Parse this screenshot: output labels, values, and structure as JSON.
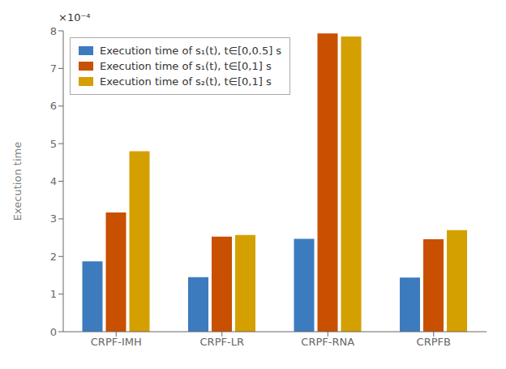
{
  "chart_data": {
    "type": "bar",
    "categories": [
      "CRPF-IMH",
      "CRPF-LR",
      "CRPF-RNA",
      "CRPFB"
    ],
    "series": [
      {
        "name": "Execution time of s₁(t), t∈[0,0.5] s",
        "color": "#3d7bbf",
        "values": [
          0.000187,
          0.000145,
          0.000247,
          0.000144
        ]
      },
      {
        "name": "Execution time of s₁(t), t∈[0,1] s",
        "color": "#c85000",
        "values": [
          0.000317,
          0.000253,
          0.000793,
          0.000246
        ]
      },
      {
        "name": "Execution time of s₂(t), t∈[0,1] s",
        "color": "#d4a000",
        "values": [
          0.00048,
          0.000257,
          0.000785,
          0.00027
        ]
      }
    ],
    "ylabel": "Execution time",
    "annotations": [
      "×10⁻⁴"
    ],
    "ylim": [
      0,
      0.0008
    ],
    "yticks": [
      0,
      {
        "value": 0.0001,
        "label": "1"
      },
      {
        "value": 0.0002,
        "label": "2"
      },
      {
        "value": 0.0003,
        "label": "3"
      },
      {
        "value": 0.0004,
        "label": "4"
      },
      {
        "value": 0.0005,
        "label": "5"
      },
      {
        "value": 0.0006,
        "label": "6"
      },
      {
        "value": 0.0007,
        "label": "7"
      },
      {
        "value": 0.0008,
        "label": "8"
      }
    ],
    "grid": false,
    "legend": "upper left"
  }
}
